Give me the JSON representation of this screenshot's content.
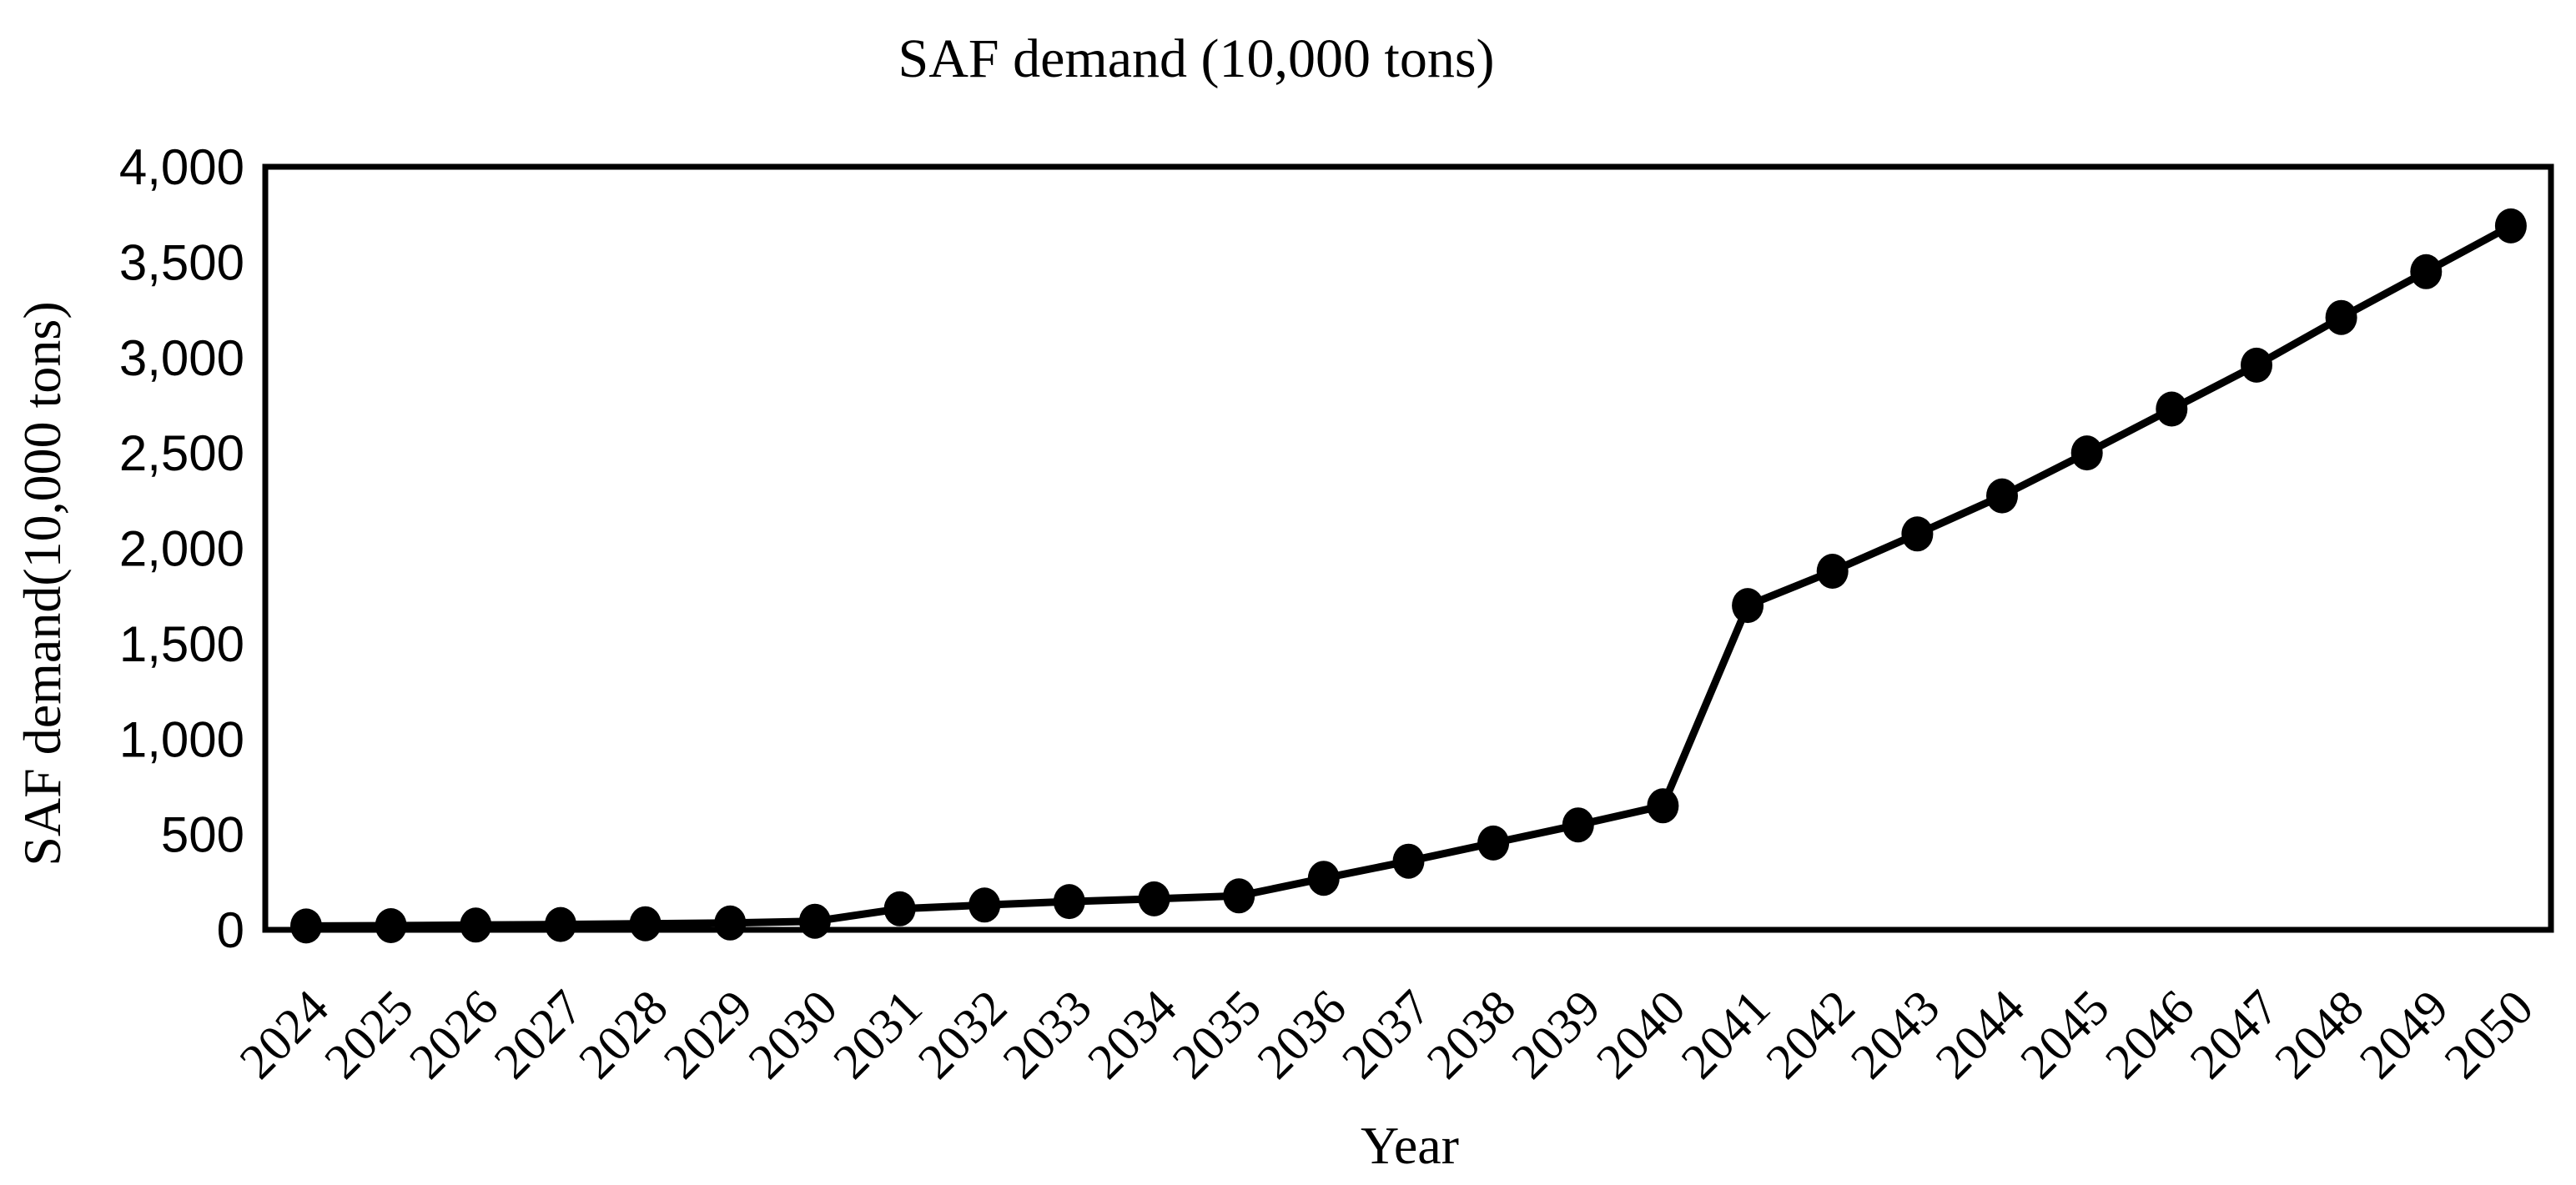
{
  "figure": {
    "title": "SAF demand (10,000 tons)",
    "x_axis_title": "Year",
    "y_axis_title": "SAF demand(10,000 tons)",
    "background_color": "#ffffff",
    "text_color": "#000000"
  },
  "chart_data": {
    "type": "line",
    "title": "SAF demand (10,000 tons)",
    "xlabel": "Year",
    "ylabel": "SAF demand(10,000 tons)",
    "categories": [
      "2024",
      "2025",
      "2026",
      "2027",
      "2028",
      "2029",
      "2030",
      "2031",
      "2032",
      "2033",
      "2034",
      "2035",
      "2036",
      "2037",
      "2038",
      "2039",
      "2040",
      "2041",
      "2042",
      "2043",
      "2044",
      "2045",
      "2046",
      "2047",
      "2048",
      "2049",
      "2050"
    ],
    "series": [
      {
        "name": "SAF demand",
        "values": [
          20,
          22,
          25,
          28,
          32,
          36,
          45,
          110,
          130,
          148,
          162,
          178,
          270,
          360,
          455,
          550,
          650,
          1700,
          1880,
          2075,
          2275,
          2500,
          2730,
          2960,
          3210,
          3450,
          3690
        ]
      }
    ],
    "ylim": [
      0,
      4000
    ],
    "ytick_step": 500,
    "yticks": [
      0,
      500,
      1000,
      1500,
      2000,
      2500,
      3000,
      3500,
      4000
    ],
    "ytick_labels": [
      "0",
      "500",
      "1,000",
      "1,500",
      "2,000",
      "2,500",
      "3,000",
      "3,500",
      "4,000"
    ],
    "grid": false,
    "legend": "none",
    "line_color": "#000000",
    "marker": "filled-circle",
    "marker_color": "#000000",
    "frame_color": "#000000"
  }
}
